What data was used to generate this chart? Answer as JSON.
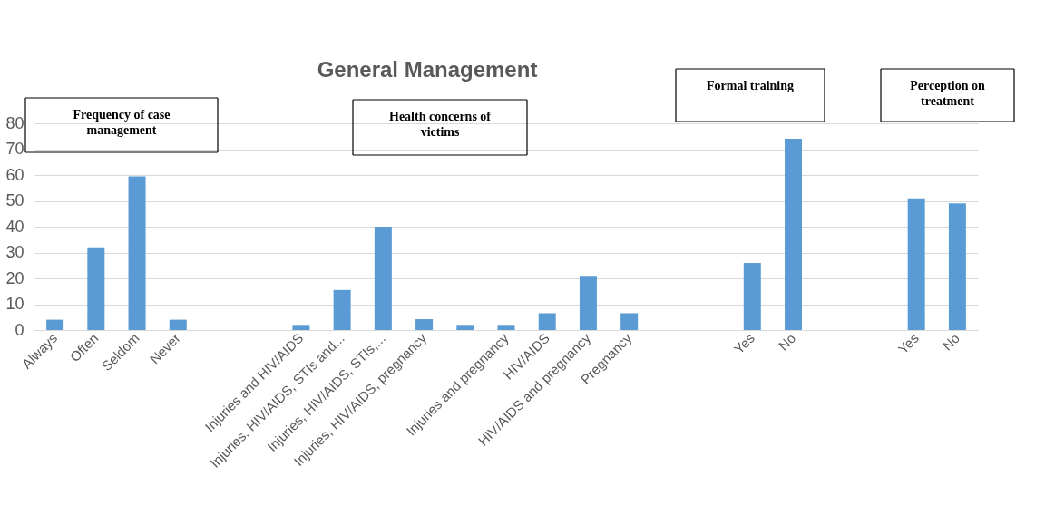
{
  "chart_data": {
    "type": "bar",
    "title": "General Management",
    "categories": [
      "Always",
      "Often",
      "Seldom",
      "Never",
      null,
      null,
      "Injuries and HIV/AIDS",
      "Injuries, HIV/AIDS, STIs and...",
      "Injuries, HIV/AIDS, STIs,...",
      "Injuries, HIV/AIDS, pregnancy",
      null,
      "Injuries and pregnancy",
      "HIV/AIDS",
      "HIV/AIDS and pregnancy",
      "Pregnancy",
      null,
      null,
      "Yes",
      "No",
      null,
      null,
      "Yes",
      "No"
    ],
    "values": [
      4,
      32,
      59.5,
      4,
      null,
      null,
      2,
      15.5,
      40,
      4.2,
      2,
      2,
      6.5,
      21,
      6.5,
      null,
      null,
      26,
      74,
      null,
      null,
      51,
      49
    ],
    "color": "#5b9bd5",
    "ylim": [
      0,
      80
    ],
    "yticks": [
      0,
      10,
      20,
      30,
      40,
      50,
      60,
      70,
      80
    ],
    "grid": "y",
    "annotations": [
      "Frequency of case management",
      "Health concerns of victims",
      "Formal training",
      "Perception on treatment"
    ]
  }
}
